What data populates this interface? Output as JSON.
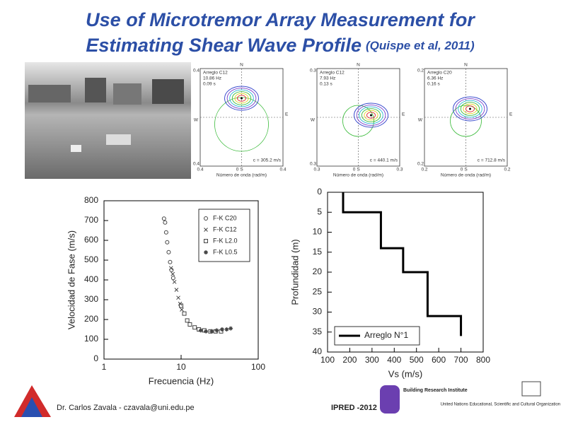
{
  "header": {
    "title_line1": "Use of Microtremor Array Measurement for",
    "title_line2": "Estimating Shear Wave Profile",
    "citation": "(Quispe et al, 2011)"
  },
  "fk_directions": {
    "north": "N",
    "south": "S",
    "east": "E",
    "west": "W"
  },
  "fk_xlabel": "Número de onda (rad/m)",
  "fk_panels": [
    {
      "info": [
        "Arreglo C12",
        "10.86 Hz",
        "0.09 s"
      ],
      "velocity": "c = 305.2 m/s",
      "tick_edge": "0.4",
      "tick_mid": "0"
    },
    {
      "info": [
        "Arreglo C12",
        "7.93 Hz",
        "0.13 s"
      ],
      "velocity": "c = 440.1 m/s",
      "tick_edge": "0.3",
      "tick_mid": "0"
    },
    {
      "info": [
        "Arreglo C20",
        "6.36 Hz",
        "0.16 s"
      ],
      "velocity": "c = 712.8 m/s",
      "tick_edge": "0.2",
      "tick_mid": "0"
    }
  ],
  "chart_data": [
    {
      "type": "scatter",
      "xlabel": "Frecuencia (Hz)",
      "ylabel": "Velocidad de Fase (m/s)",
      "xscale": "log",
      "xlim": [
        1,
        100
      ],
      "xticks": [
        1,
        10,
        100
      ],
      "ylim": [
        0,
        800
      ],
      "yticks": [
        0,
        100,
        200,
        300,
        400,
        500,
        600,
        700,
        800
      ],
      "legend": "upper right",
      "series": [
        {
          "name": "F-K C20",
          "color": "#444444",
          "marker": "circle",
          "x": [
            6.0,
            6.2,
            6.4,
            6.6,
            6.9,
            7.2,
            7.5,
            7.9
          ],
          "values": [
            710,
            690,
            640,
            590,
            540,
            490,
            450,
            410
          ]
        },
        {
          "name": "F-K C12",
          "color": "#444444",
          "marker": "x",
          "x": [
            7.4,
            7.8,
            8.2,
            8.7,
            9.2,
            9.7,
            10.2
          ],
          "values": [
            460,
            430,
            390,
            350,
            310,
            280,
            250
          ]
        },
        {
          "name": "F-K L2.0",
          "color": "#444444",
          "marker": "square",
          "x": [
            10,
            11,
            12,
            13,
            15,
            17,
            20,
            24,
            28,
            33
          ],
          "values": [
            270,
            230,
            195,
            175,
            160,
            150,
            145,
            140,
            140,
            140
          ]
        },
        {
          "name": "F-K L0.5",
          "color": "#444444",
          "marker": "star",
          "x": [
            18,
            21,
            25,
            29,
            34,
            39,
            44
          ],
          "values": [
            145,
            140,
            140,
            145,
            150,
            150,
            155
          ]
        }
      ]
    },
    {
      "type": "line",
      "xlabel": "Vs (m/s)",
      "ylabel": "Profundidad (m)",
      "xlim": [
        100,
        800
      ],
      "xticks": [
        100,
        200,
        300,
        400,
        500,
        600,
        700,
        800
      ],
      "ylim": [
        40,
        0
      ],
      "yticks": [
        0,
        5,
        10,
        15,
        20,
        25,
        30,
        35,
        40
      ],
      "legend": "lower left",
      "series": [
        {
          "name": "Arreglo N°1",
          "color": "#000000",
          "x": [
            170,
            170,
            340,
            340,
            440,
            440,
            550,
            550,
            700,
            700
          ],
          "values": [
            0,
            5,
            5,
            14,
            14,
            20,
            20,
            31,
            31,
            36
          ]
        }
      ]
    }
  ],
  "footer": {
    "author": "Dr. Carlos Zavala  -  czavala@uni.edu.pe",
    "event": "IPRED -2012",
    "bri": "Building Research Institute",
    "unesco": "United Nations Educational, Scientific and Cultural Organization"
  }
}
